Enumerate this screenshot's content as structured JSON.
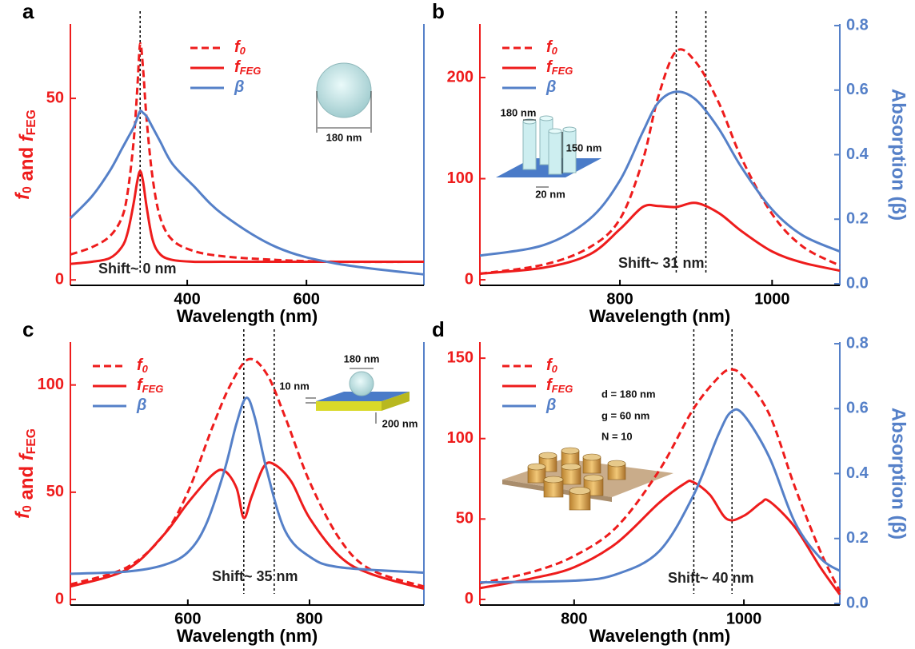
{
  "chart_data": [
    {
      "type": "line",
      "panel": "a",
      "xlabel": "Wavelength (nm)",
      "ylabel": "f0 and fFEG",
      "xlim": [
        204,
        797
      ],
      "xticks": [
        400,
        600
      ],
      "ylim": [
        -1.5,
        70.5
      ],
      "yticks": [
        0,
        50
      ],
      "legend": "upper center",
      "series": [
        {
          "name": "f0",
          "color": "#ee1c1c",
          "style": "dashed",
          "x": [
            204,
            240,
            270,
            290,
            300,
            310,
            316,
            321,
            326,
            332,
            342,
            355,
            375,
            410,
            460,
            550,
            650,
            797
          ],
          "values": [
            7,
            9,
            12,
            17,
            24,
            38,
            52,
            65,
            58,
            44,
            28,
            17,
            11,
            8,
            6.5,
            5.5,
            5,
            5
          ]
        },
        {
          "name": "fFEG",
          "color": "#ee1c1c",
          "style": "solid",
          "x": [
            204,
            240,
            270,
            290,
            300,
            310,
            316,
            321,
            326,
            332,
            342,
            355,
            375,
            410,
            460,
            550,
            650,
            797
          ],
          "values": [
            4.4,
            5,
            6,
            9,
            13,
            21,
            27,
            30,
            27,
            20,
            11,
            7,
            5.5,
            5,
            5,
            5,
            5,
            5
          ]
        },
        {
          "name": "β",
          "color": "#5580c8",
          "style": "solid",
          "x": [
            204,
            240,
            270,
            290,
            300,
            310,
            316,
            321,
            326,
            332,
            342,
            355,
            375,
            410,
            460,
            550,
            650,
            797
          ],
          "values": [
            17,
            23,
            30,
            36,
            39,
            42,
            44.5,
            46.5,
            46,
            45,
            42,
            38,
            32,
            26,
            18,
            9,
            4.5,
            1.5
          ]
        }
      ],
      "vlines": [
        321
      ],
      "annotations": [
        "Shift~ 0 nm",
        "180 nm"
      ]
    },
    {
      "type": "line",
      "panel": "b",
      "xlabel": "Wavelength (nm)",
      "y2label": "Absorption (β)",
      "xlim": [
        616,
        1089
      ],
      "xticks": [
        800,
        1000
      ],
      "ylim": [
        -5.5,
        253
      ],
      "yticks": [
        0,
        100,
        200
      ],
      "y2lim": [
        -0.005,
        0.805
      ],
      "y2ticks": [
        {
          "value": 0,
          "label": "0.0"
        },
        0.2,
        0.4,
        0.6,
        0.8
      ],
      "legend": "upper left",
      "series": [
        {
          "name": "f0",
          "color": "#ee1c1c",
          "style": "dashed",
          "x": [
            616,
            700,
            760,
            800,
            830,
            850,
            874,
            900,
            930,
            960,
            1000,
            1040,
            1089
          ],
          "values": [
            6,
            15,
            32,
            60,
            118,
            180,
            226,
            215,
            175,
            120,
            65,
            33,
            14
          ]
        },
        {
          "name": "fFEG",
          "color": "#ee1c1c",
          "style": "solid",
          "x": [
            616,
            700,
            760,
            800,
            830,
            850,
            874,
            900,
            930,
            960,
            1000,
            1040,
            1089
          ],
          "values": [
            6,
            12,
            25,
            50,
            72,
            73,
            72,
            76,
            66,
            48,
            28,
            17,
            9
          ]
        },
        {
          "name": "β",
          "color": "#5580c8",
          "style": "solid",
          "axis": "y2",
          "x": [
            616,
            700,
            760,
            800,
            830,
            850,
            874,
            900,
            930,
            960,
            1000,
            1040,
            1089
          ],
          "values": [
            0.087,
            0.12,
            0.2,
            0.32,
            0.47,
            0.56,
            0.595,
            0.57,
            0.48,
            0.36,
            0.23,
            0.15,
            0.1
          ]
        }
      ],
      "vlines": [
        874,
        913
      ],
      "annotations": [
        "Shift~ 31 nm",
        "180 nm",
        "150 nm",
        "20 nm"
      ]
    },
    {
      "type": "line",
      "panel": "c",
      "xlabel": "Wavelength (nm)",
      "ylabel": "f0 and fFEG",
      "xlim": [
        407,
        988
      ],
      "xticks": [
        600,
        800
      ],
      "ylim": [
        -2.6,
        120
      ],
      "yticks": [
        0,
        50,
        100
      ],
      "legend": "upper left",
      "series": [
        {
          "name": "f0",
          "color": "#ee1c1c",
          "style": "dashed",
          "x": [
            407,
            500,
            560,
            600,
            640,
            670,
            700,
            730,
            760,
            800,
            850,
            900,
            988
          ],
          "values": [
            7,
            15,
            30,
            50,
            80,
            100,
            112,
            105,
            85,
            55,
            28,
            14,
            6
          ]
        },
        {
          "name": "fFEG",
          "color": "#ee1c1c",
          "style": "solid",
          "x": [
            407,
            500,
            560,
            600,
            640,
            660,
            680,
            692,
            705,
            725,
            742,
            770,
            800,
            850,
            900,
            988
          ],
          "values": [
            6,
            14,
            30,
            45,
            58,
            60,
            52,
            38,
            48,
            62,
            63,
            55,
            38,
            20,
            12,
            5
          ]
        },
        {
          "name": "β",
          "color": "#5580c8",
          "style": "solid",
          "x": [
            407,
            500,
            560,
            600,
            630,
            660,
            680,
            696,
            710,
            730,
            760,
            800,
            850,
            988
          ],
          "values": [
            12,
            13,
            16,
            22,
            35,
            60,
            82,
            94,
            85,
            60,
            32,
            20,
            15,
            12.5
          ]
        }
      ],
      "vlines": [
        692,
        742
      ],
      "annotations": [
        "Shift~ 35 nm",
        "180 nm",
        "10 nm",
        "200 nm"
      ]
    },
    {
      "type": "line",
      "panel": "d",
      "xlabel": "Wavelength (nm)",
      "y2label": "Absorption (β)",
      "xlim": [
        689,
        1113
      ],
      "xticks": [
        800,
        1000
      ],
      "ylim": [
        -3.5,
        160
      ],
      "yticks": [
        0,
        50,
        100,
        150
      ],
      "y2lim": [
        -0.005,
        0.805
      ],
      "y2ticks": [
        {
          "value": 0,
          "label": "0.0"
        },
        0.2,
        0.4,
        0.6,
        0.8
      ],
      "legend": "upper left",
      "series": [
        {
          "name": "f0",
          "color": "#ee1c1c",
          "style": "dashed",
          "x": [
            689,
            750,
            800,
            850,
            900,
            940,
            970,
            985,
            1000,
            1030,
            1060,
            1090,
            1113
          ],
          "values": [
            10,
            17,
            27,
            45,
            80,
            118,
            138,
            143,
            138,
            115,
            70,
            30,
            5
          ]
        },
        {
          "name": "fFEG",
          "color": "#ee1c1c",
          "style": "solid",
          "x": [
            689,
            750,
            800,
            850,
            900,
            930,
            940,
            960,
            980,
            1000,
            1020,
            1030,
            1060,
            1090,
            1113
          ],
          "values": [
            7,
            13,
            20,
            35,
            60,
            72,
            73,
            65,
            50,
            52,
            60,
            61,
            45,
            20,
            3
          ]
        },
        {
          "name": "β",
          "color": "#5580c8",
          "style": "solid",
          "axis": "y2",
          "x": [
            689,
            800,
            850,
            900,
            940,
            970,
            985,
            1000,
            1030,
            1060,
            1090,
            1113
          ],
          "values": [
            0.065,
            0.07,
            0.09,
            0.16,
            0.33,
            0.52,
            0.59,
            0.58,
            0.45,
            0.25,
            0.14,
            0.1
          ]
        }
      ],
      "vlines": [
        941,
        986
      ],
      "annotations": [
        "Shift~ 40 nm",
        "d = 180 nm",
        "g = 60 nm",
        "N = 10"
      ]
    }
  ]
}
